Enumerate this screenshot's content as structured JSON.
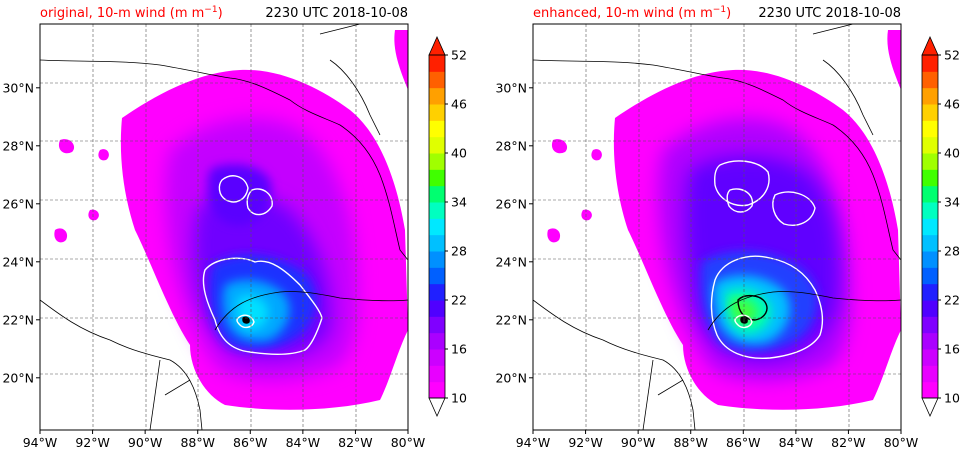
{
  "chart_data": [
    {
      "type": "heatmap",
      "title": "original, 10-m wind (m m⁻¹)",
      "title_base": "original, 10-m wind (m m",
      "title_sup": "−1",
      "title_end": ")",
      "time_label": "2230 UTC 2018-10-08",
      "x_ticks": [
        "94°W",
        "92°W",
        "90°W",
        "88°W",
        "86°W",
        "84°W",
        "82°W",
        "80°W"
      ],
      "y_ticks": [
        "30°N",
        "28°N",
        "26°N",
        "24°N",
        "22°N",
        "20°N"
      ],
      "xlim": [
        -94,
        -80
      ],
      "ylim": [
        18.2,
        32.2
      ],
      "grid": true,
      "colorbar": {
        "min": 10,
        "max": 52,
        "ticks": [
          "52",
          "46",
          "40",
          "34",
          "28",
          "22",
          "16",
          "10"
        ],
        "extend": "both"
      }
    },
    {
      "type": "heatmap",
      "title": "enhanced, 10-m wind (m m⁻¹)",
      "title_base": "enhanced, 10-m wind (m m",
      "title_sup": "−1",
      "title_end": ")",
      "time_label": "2230 UTC 2018-10-08",
      "x_ticks": [
        "94°W",
        "92°W",
        "90°W",
        "88°W",
        "86°W",
        "84°W",
        "82°W",
        "80°W"
      ],
      "y_ticks": [
        "30°N",
        "28°N",
        "26°N",
        "24°N",
        "22°N",
        "20°N"
      ],
      "xlim": [
        -94,
        -80
      ],
      "ylim": [
        18.2,
        32.2
      ],
      "grid": true,
      "colorbar": {
        "min": 10,
        "max": 52,
        "ticks": [
          "52",
          "46",
          "40",
          "34",
          "28",
          "22",
          "16",
          "10"
        ],
        "extend": "both"
      }
    }
  ],
  "colors": {
    "background": "#ffffff",
    "title": "#ff0000",
    "contour_white": "#ffffff",
    "contour_black": "#000000",
    "palette": [
      "#ff00ff",
      "#e800ff",
      "#cc00ff",
      "#aa00ff",
      "#8000ff",
      "#5000ff",
      "#2020ff",
      "#0060ff",
      "#0090ff",
      "#00c0ff",
      "#00e8ff",
      "#00ffc0",
      "#00ff70",
      "#40ff00",
      "#a0ff00",
      "#e0ff00",
      "#ffff00",
      "#ffd000",
      "#ffa000",
      "#ff6000",
      "#ff2000"
    ]
  }
}
